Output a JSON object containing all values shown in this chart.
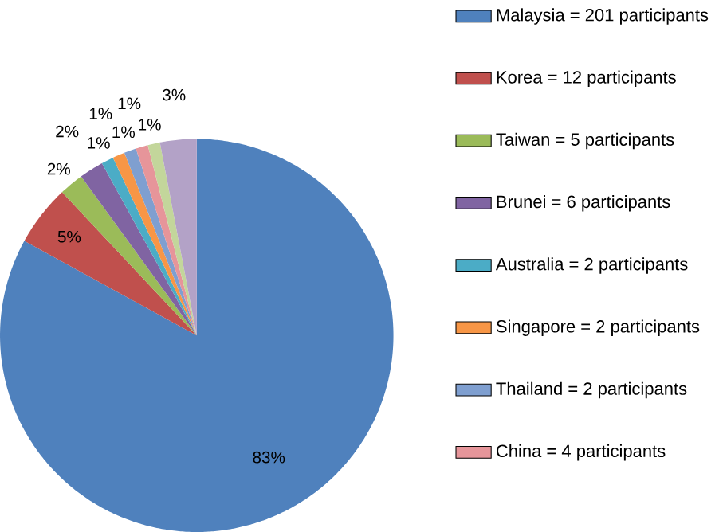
{
  "chart_data": {
    "type": "pie",
    "categories": [
      "Malaysia  =  201  participants",
      "Korea  =  12  participants",
      "Taiwan  =  5  participants",
      "Brunei  =  6  participants",
      "Australia  =  2  participants",
      "Singapore  =  2  participants",
      "Thailand  =  2  participants",
      "China  =  4  participants",
      null,
      null
    ],
    "values": [
      83,
      5,
      2,
      2,
      1,
      1,
      1,
      1,
      1,
      3
    ],
    "value_labels": [
      "83%",
      "5%",
      "2%",
      "2%",
      "1%",
      "1%",
      "1%",
      "1%",
      "1%",
      "3%"
    ],
    "colors": [
      "#4f81bd",
      "#c0504d",
      "#9bbb59",
      "#8064a2",
      "#4bacc6",
      "#f79646",
      "#7f9fd0",
      "#e6959a",
      "#c3d69b",
      "#b3a2c7"
    ],
    "legend": "right"
  }
}
